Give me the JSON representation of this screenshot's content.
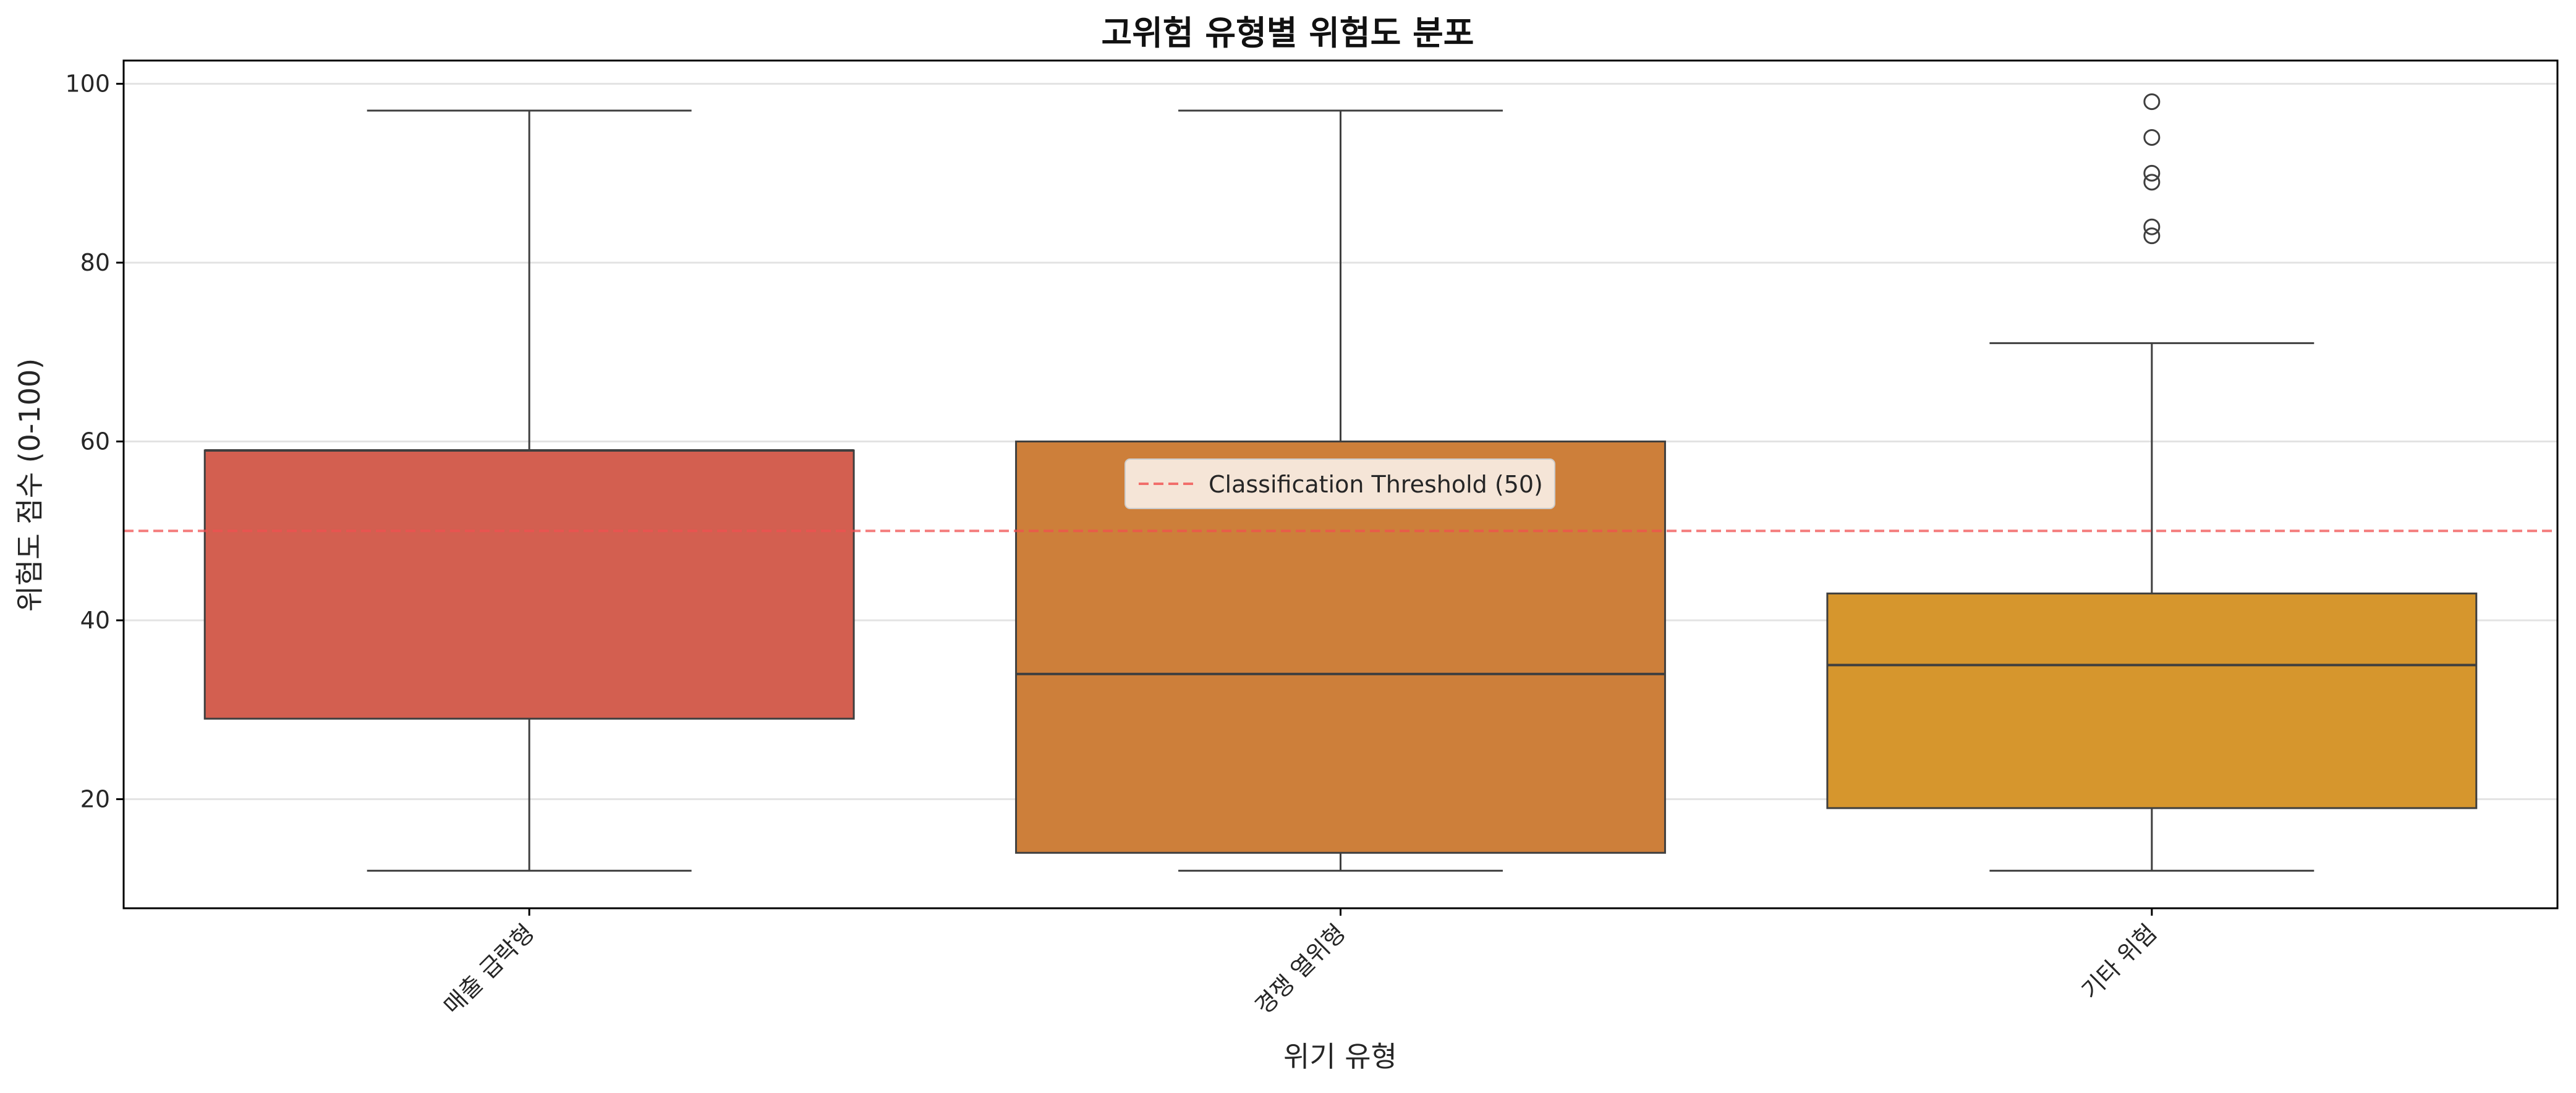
{
  "chart_data": {
    "type": "box",
    "title": "고위험 유형별 위험도 분포",
    "xlabel": "위기 유형",
    "ylabel": "위험도 점수 (0-100)",
    "ylim": [
      7.8,
      102.6
    ],
    "yticks": [
      20,
      40,
      60,
      80,
      100
    ],
    "grid": "y",
    "categories": [
      "매출 급락형",
      "경쟁 열위형",
      "기타 위험"
    ],
    "boxes": [
      {
        "category": "매출 급락형",
        "whisker_low": 12,
        "q1": 29,
        "median": 59,
        "q3": 59,
        "whisker_high": 97,
        "outliers": [],
        "color": "#d35f50"
      },
      {
        "category": "경쟁 열위형",
        "whisker_low": 12,
        "q1": 14,
        "median": 34,
        "q3": 60,
        "whisker_high": 97,
        "outliers": [],
        "color": "#cd7f3a"
      },
      {
        "category": "기타 위험",
        "whisker_low": 12,
        "q1": 19,
        "median": 35,
        "q3": 43,
        "whisker_high": 71,
        "outliers": [
          83,
          84,
          89,
          90,
          94,
          98
        ],
        "color": "#d6962d"
      }
    ],
    "reference_line": {
      "y": 50,
      "label": "Classification Threshold (50)",
      "color": "#f05050",
      "style": "dashed"
    },
    "legend": {
      "position": "upper-center",
      "entries": [
        "Classification Threshold (50)"
      ]
    }
  }
}
